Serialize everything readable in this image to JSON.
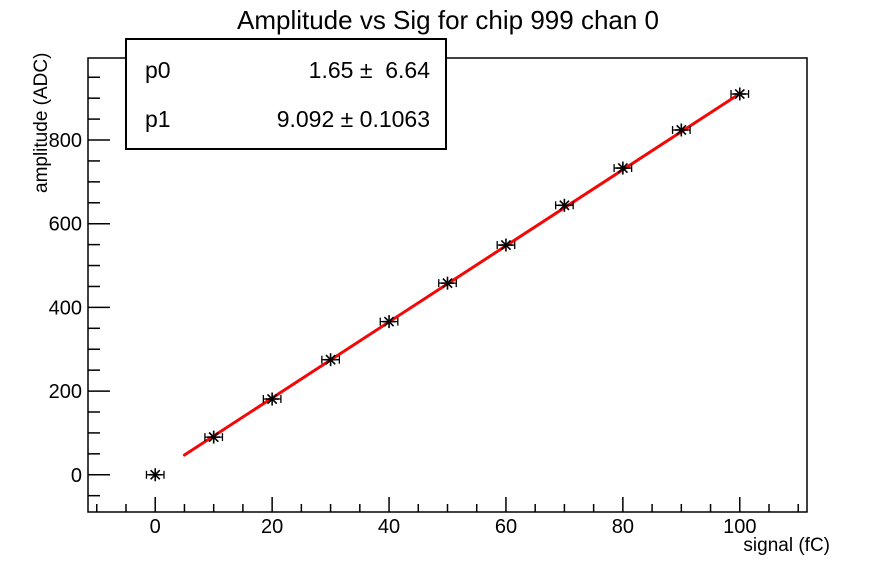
{
  "title": "Amplitude vs Sig for chip 999 chan 0",
  "stats_box": {
    "rows": [
      {
        "name": "p0",
        "value": "1.65 ±  6.64"
      },
      {
        "name": "p1",
        "value": "9.092 ± 0.1063"
      }
    ]
  },
  "chart_data": {
    "type": "scatter",
    "title": "Amplitude vs Sig for chip 999 chan 0",
    "xlabel": "signal (fC)",
    "ylabel": "amplitude (ADC)",
    "x": [
      0,
      10,
      20,
      30,
      40,
      50,
      60,
      70,
      80,
      90,
      100
    ],
    "y": [
      0,
      90,
      181,
      275,
      366,
      458,
      549,
      644,
      733,
      824,
      910
    ],
    "x_error": 1.5,
    "marker": "asterisk",
    "marker_color": "#000000",
    "xlim": [
      -11.5,
      111.5
    ],
    "ylim": [
      -89,
      996
    ],
    "x_major_ticks": [
      0,
      20,
      40,
      60,
      80,
      100
    ],
    "x_minor_step": 5,
    "y_major_ticks": [
      0,
      200,
      400,
      600,
      800
    ],
    "y_minor_step": 50,
    "grid": false,
    "legend": "none",
    "fit": {
      "type": "linear",
      "p0": 1.65,
      "p1": 9.092,
      "x_range": [
        5,
        100
      ],
      "color": "#f40707"
    },
    "axis_color": "#000000",
    "background": "#ffffff"
  }
}
